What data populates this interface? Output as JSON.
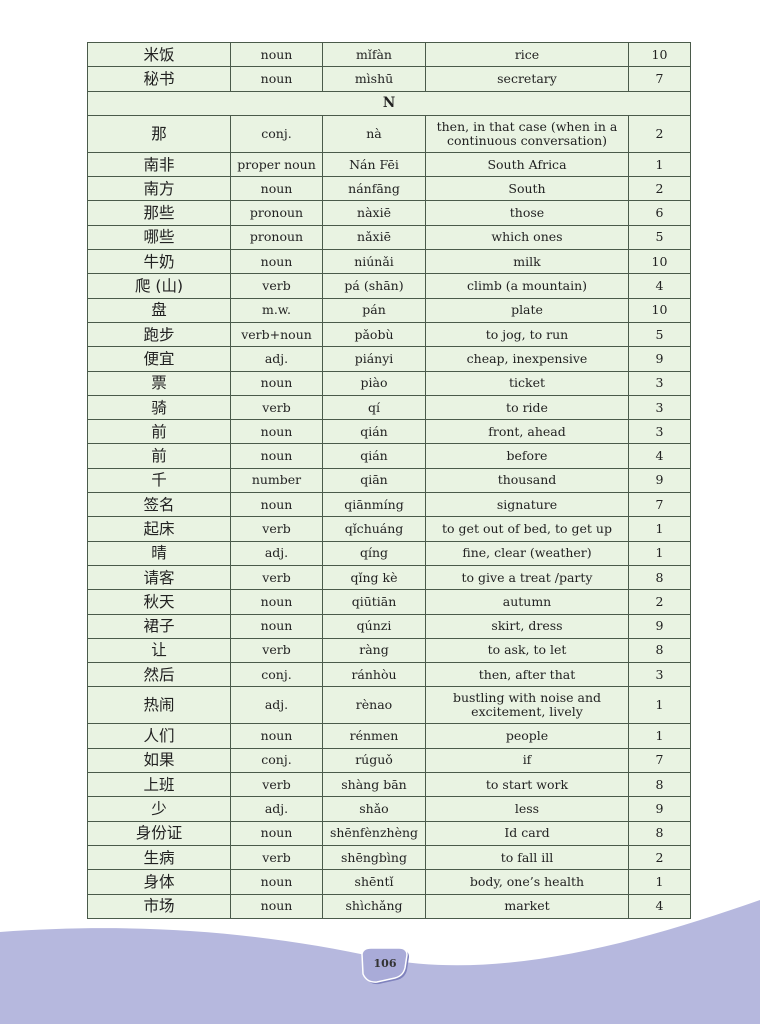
{
  "table": {
    "rows": [
      {
        "hanzi": "米饭",
        "pos": "noun",
        "pinyin": "mǐfàn",
        "meaning": "rice",
        "lesson": "10"
      },
      {
        "hanzi": "秘书",
        "pos": "noun",
        "pinyin": "mìshū",
        "meaning": "secretary",
        "lesson": "7"
      },
      {
        "section": "N"
      },
      {
        "hanzi": "那",
        "pos": "conj.",
        "pinyin": "nà",
        "meaning": "then, in that case (when in a continuous conversation)",
        "lesson": "2",
        "tall": true
      },
      {
        "hanzi": "南非",
        "pos": "proper noun",
        "pinyin": "Nán Fēi",
        "meaning": "South Africa",
        "lesson": "1"
      },
      {
        "hanzi": "南方",
        "pos": "noun",
        "pinyin": "nánfāng",
        "meaning": "South",
        "lesson": "2"
      },
      {
        "hanzi": "那些",
        "pos": "pronoun",
        "pinyin": "nàxiē",
        "meaning": "those",
        "lesson": "6"
      },
      {
        "hanzi": "哪些",
        "pos": "pronoun",
        "pinyin": "nǎxiē",
        "meaning": "which ones",
        "lesson": "5"
      },
      {
        "hanzi": "牛奶",
        "pos": "noun",
        "pinyin": "niúnǎi",
        "meaning": "milk",
        "lesson": "10"
      },
      {
        "hanzi": "爬 (山)",
        "pos": "verb",
        "pinyin": "pá (shān)",
        "meaning": "climb (a mountain)",
        "lesson": "4"
      },
      {
        "hanzi": "盘",
        "pos": "m.w.",
        "pinyin": "pán",
        "meaning": "plate",
        "lesson": "10"
      },
      {
        "hanzi": "跑步",
        "pos": "verb+noun",
        "pinyin": "pǎobù",
        "meaning": "to jog, to run",
        "lesson": "5"
      },
      {
        "hanzi": "便宜",
        "pos": "adj.",
        "pinyin": "piányi",
        "meaning": "cheap, inexpensive",
        "lesson": "9"
      },
      {
        "hanzi": "票",
        "pos": "noun",
        "pinyin": "piào",
        "meaning": "ticket",
        "lesson": "3"
      },
      {
        "hanzi": "骑",
        "pos": "verb",
        "pinyin": "qí",
        "meaning": "to ride",
        "lesson": "3"
      },
      {
        "hanzi": "前",
        "pos": "noun",
        "pinyin": "qián",
        "meaning": "front, ahead",
        "lesson": "3"
      },
      {
        "hanzi": "前",
        "pos": "noun",
        "pinyin": "qián",
        "meaning": "before",
        "lesson": "4"
      },
      {
        "hanzi": "千",
        "pos": "number",
        "pinyin": "qiān",
        "meaning": "thousand",
        "lesson": "9"
      },
      {
        "hanzi": "签名",
        "pos": "noun",
        "pinyin": "qiānmíng",
        "meaning": "signature",
        "lesson": "7"
      },
      {
        "hanzi": "起床",
        "pos": "verb",
        "pinyin": "qǐchuáng",
        "meaning": "to get out of bed, to get up",
        "lesson": "1"
      },
      {
        "hanzi": "晴",
        "pos": "adj.",
        "pinyin": "qíng",
        "meaning": "fine, clear (weather)",
        "lesson": "1"
      },
      {
        "hanzi": "请客",
        "pos": "verb",
        "pinyin": "qǐng kè",
        "meaning": "to give a treat /party",
        "lesson": "8"
      },
      {
        "hanzi": "秋天",
        "pos": "noun",
        "pinyin": "qiūtiān",
        "meaning": "autumn",
        "lesson": "2"
      },
      {
        "hanzi": "裙子",
        "pos": "noun",
        "pinyin": "qúnzi",
        "meaning": "skirt, dress",
        "lesson": "9"
      },
      {
        "hanzi": "让",
        "pos": "verb",
        "pinyin": "ràng",
        "meaning": "to ask, to let",
        "lesson": "8"
      },
      {
        "hanzi": "然后",
        "pos": "conj.",
        "pinyin": "ránhòu",
        "meaning": "then, after that",
        "lesson": "3"
      },
      {
        "hanzi": "热闹",
        "pos": "adj.",
        "pinyin": "rènao",
        "meaning": "bustling with noise and excitement, lively",
        "lesson": "1",
        "tall": true
      },
      {
        "hanzi": "人们",
        "pos": "noun",
        "pinyin": "rénmen",
        "meaning": "people",
        "lesson": "1"
      },
      {
        "hanzi": "如果",
        "pos": "conj.",
        "pinyin": "rúguǒ",
        "meaning": "if",
        "lesson": "7"
      },
      {
        "hanzi": "上班",
        "pos": "verb",
        "pinyin": "shàng bān",
        "meaning": "to start work",
        "lesson": "8"
      },
      {
        "hanzi": "少",
        "pos": "adj.",
        "pinyin": "shǎo",
        "meaning": "less",
        "lesson": "9"
      },
      {
        "hanzi": "身份证",
        "pos": "noun",
        "pinyin": "shēnfènzhèng",
        "meaning": "Id card",
        "lesson": "8"
      },
      {
        "hanzi": "生病",
        "pos": "verb",
        "pinyin": "shēngbìng",
        "meaning": "to fall ill",
        "lesson": "2"
      },
      {
        "hanzi": "身体",
        "pos": "noun",
        "pinyin": "shēntǐ",
        "meaning": "body, one’s health",
        "lesson": "1"
      },
      {
        "hanzi": "市场",
        "pos": "noun",
        "pinyin": "shìchǎng",
        "meaning": "market",
        "lesson": "4"
      }
    ]
  },
  "footer": {
    "page_number": "106"
  },
  "colors": {
    "table_bg": "#e9f3e2",
    "border": "#4a5a4a",
    "wave": "#b6b8de",
    "badge": "#8f92c9"
  }
}
